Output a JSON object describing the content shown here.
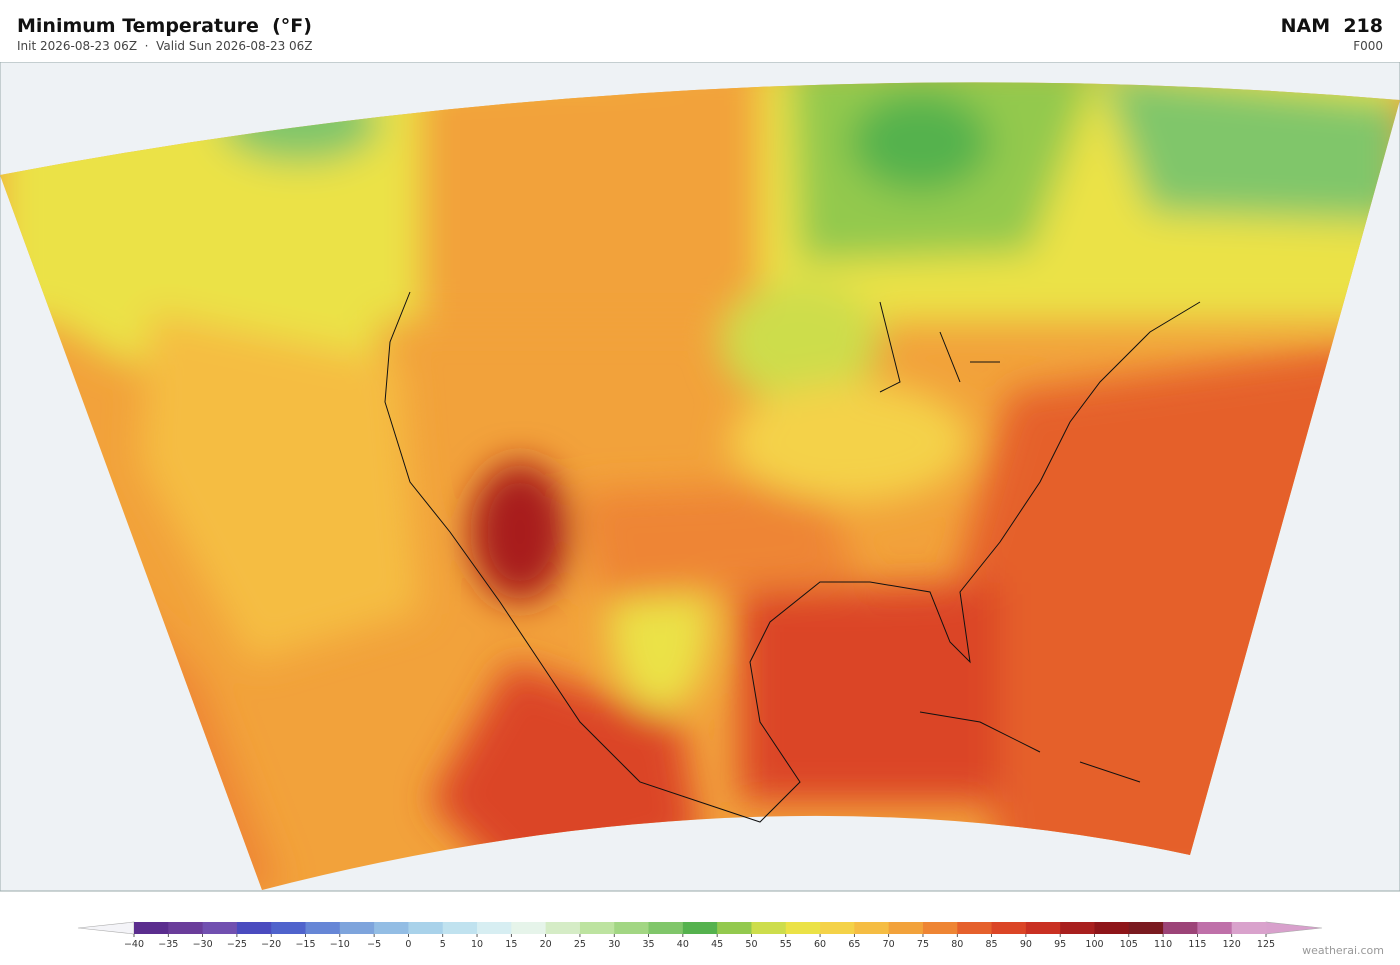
{
  "header": {
    "title": "Minimum Temperature  (°F)",
    "subtitle": "Init 2026-08-23 06Z  ·  Valid Sun 2026-08-23 06Z",
    "model": "NAM  218",
    "forecast_hour": "F000"
  },
  "colorbar": {
    "ticks": [
      {
        "value": -40,
        "label": "−40"
      },
      {
        "value": -35,
        "label": "−35"
      },
      {
        "value": -30,
        "label": "−30"
      },
      {
        "value": -25,
        "label": "−25"
      },
      {
        "value": -20,
        "label": "−20"
      },
      {
        "value": -15,
        "label": "−15"
      },
      {
        "value": -10,
        "label": "−10"
      },
      {
        "value": -5,
        "label": "−5"
      },
      0,
      5,
      10,
      15,
      20,
      25,
      30,
      35,
      40,
      45,
      50,
      55,
      60,
      65,
      70,
      75,
      80,
      85,
      90,
      95,
      100,
      105,
      110,
      115,
      120,
      125
    ],
    "colors": [
      "#5b2d8e",
      "#6a3d9a",
      "#7150b0",
      "#4a4bbf",
      "#4f63cc",
      "#6686d6",
      "#7ea4dc",
      "#93bde4",
      "#a9d2ea",
      "#c0e2ef",
      "#d7eef2",
      "#e6f4ea",
      "#d5ecc6",
      "#bde3a0",
      "#a2d683",
      "#80c66a",
      "#55b24e",
      "#93c94e",
      "#cddd4c",
      "#ebe246",
      "#f4d248",
      "#f5bd43",
      "#f2a23b",
      "#ee8534",
      "#e5602c",
      "#db4526",
      "#c93022",
      "#a81f1e",
      "#8e1519",
      "#7a1a20",
      "#9c4478",
      "#bf70a9",
      "#d9a2cc"
    ],
    "under_color": "#f4f4f8",
    "over_color": "#d8a0cc"
  },
  "footer": {
    "credit": "weatherai.com"
  }
}
